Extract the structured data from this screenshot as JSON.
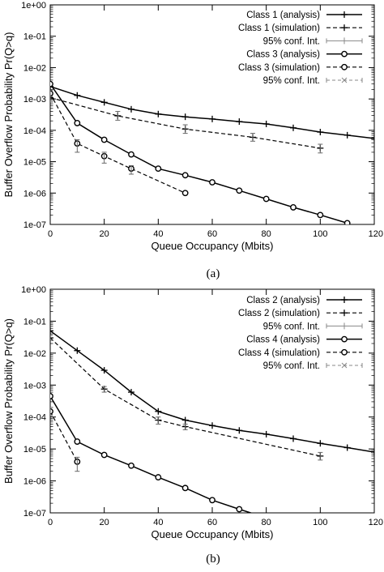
{
  "chart_data": [
    {
      "type": "line",
      "caption": "(a)",
      "xlabel": "Queue Occupancy (Mbits)",
      "ylabel": "Buffer Overflow Probability Pr(Q>q)",
      "xlim": [
        0,
        120
      ],
      "ylim": [
        1e-07,
        1
      ],
      "yscale": "log",
      "x_ticks": [
        0,
        20,
        40,
        60,
        80,
        100,
        120
      ],
      "y_ticks": [
        1,
        0.1,
        0.01,
        0.001,
        0.0001,
        1e-05,
        1e-06,
        1e-07
      ],
      "y_tick_labels": [
        "1e+00",
        "1e-01",
        "1e-02",
        "1e-03",
        "1e-04",
        "1e-05",
        "1e-06",
        "1e-07"
      ],
      "legend_position": "top-right",
      "series": [
        {
          "name": "Class 1 (analysis)",
          "dash": "solid",
          "marker": "plus",
          "x": [
            0,
            10,
            20,
            30,
            40,
            50,
            60,
            70,
            80,
            90,
            100,
            110,
            120
          ],
          "y": [
            0.0025,
            0.0013,
            0.00078,
            0.00047,
            0.00033,
            0.00027,
            0.00023,
            0.00019,
            0.00016,
            0.00012,
            8.8e-05,
            7e-05,
            5.5e-05
          ]
        },
        {
          "name": "Class 1 (simulation)",
          "dash": "dashed",
          "marker": "plus",
          "x": [
            0,
            25,
            50,
            75,
            100
          ],
          "y": [
            0.0011,
            0.00029,
            0.00011,
            6e-05,
            2.7e-05
          ]
        },
        {
          "name": "95% conf. Int.",
          "dash": "errorbar",
          "x": [
            0,
            25,
            50,
            75,
            100
          ],
          "low": [
            0.0008,
            0.00021,
            8e-05,
            4.5e-05,
            1.9e-05
          ],
          "high": [
            0.0015,
            0.0004,
            0.00015,
            8e-05,
            3.6e-05
          ]
        },
        {
          "name": "Class 3 (analysis)",
          "dash": "solid",
          "marker": "circle",
          "x": [
            0,
            10,
            20,
            30,
            40,
            50,
            60,
            70,
            80,
            90,
            100,
            110
          ],
          "y": [
            0.003,
            0.00017,
            5e-05,
            1.7e-05,
            6e-06,
            3.7e-06,
            2.2e-06,
            1.2e-06,
            6.5e-07,
            3.5e-07,
            2e-07,
            1.1e-07
          ]
        },
        {
          "name": "Class 3 (simulation)",
          "dash": "dashed",
          "marker": "circle",
          "x": [
            0,
            10,
            20,
            30,
            50
          ],
          "y": [
            0.0015,
            3.8e-05,
            1.5e-05,
            6e-06,
            1e-06
          ]
        },
        {
          "name": "95% conf. Int.",
          "dash": "errorbar-x",
          "x": [
            0,
            10,
            20,
            30
          ],
          "low": [
            0.0012,
            2e-05,
            9e-06,
            4e-06
          ],
          "high": [
            0.0019,
            5e-05,
            2e-05,
            7.5e-06
          ]
        }
      ]
    },
    {
      "type": "line",
      "caption": "(b)",
      "xlabel": "Queue Occupancy (Mbits)",
      "ylabel": "Buffer Overflow Probability Pr(Q>q)",
      "xlim": [
        0,
        120
      ],
      "ylim": [
        1e-07,
        1
      ],
      "yscale": "log",
      "x_ticks": [
        0,
        20,
        40,
        60,
        80,
        100,
        120
      ],
      "y_ticks": [
        1,
        0.1,
        0.01,
        0.001,
        0.0001,
        1e-05,
        1e-06,
        1e-07
      ],
      "y_tick_labels": [
        "1e+00",
        "1e-01",
        "1e-02",
        "1e-03",
        "1e-04",
        "1e-05",
        "1e-06",
        "1e-07"
      ],
      "legend_position": "top-right",
      "series": [
        {
          "name": "Class 2 (analysis)",
          "dash": "solid",
          "marker": "plus",
          "x": [
            0,
            10,
            20,
            30,
            40,
            50,
            60,
            70,
            80,
            90,
            100,
            110,
            120
          ],
          "y": [
            0.05,
            0.012,
            0.0029,
            0.0006,
            0.00015,
            8e-05,
            5.4e-05,
            3.8e-05,
            2.9e-05,
            2.1e-05,
            1.5e-05,
            1.1e-05,
            8e-06
          ]
        },
        {
          "name": "Class 2 (simulation)",
          "dash": "dashed",
          "marker": "plus",
          "x": [
            0,
            20,
            40,
            50,
            100
          ],
          "y": [
            0.03,
            0.00075,
            8e-05,
            5e-05,
            6e-06
          ]
        },
        {
          "name": "95% conf. Int.",
          "dash": "errorbar",
          "x": [
            0,
            20,
            40,
            50,
            100
          ],
          "low": [
            0.025,
            0.0006,
            6e-05,
            4e-05,
            4.5e-06
          ],
          "high": [
            0.036,
            0.0009,
            0.0001,
            6e-05,
            7.8e-06
          ]
        },
        {
          "name": "Class 4 (analysis)",
          "dash": "solid",
          "marker": "circle",
          "x": [
            0,
            10,
            20,
            30,
            40,
            50,
            60,
            70,
            80
          ],
          "y": [
            0.00045,
            1.7e-05,
            6.5e-06,
            3e-06,
            1.3e-06,
            6e-07,
            2.5e-07,
            1.3e-07,
            7e-08
          ]
        },
        {
          "name": "Class 4 (simulation)",
          "dash": "dashed",
          "marker": "circle",
          "x": [
            0,
            10
          ],
          "y": [
            0.00015,
            4e-06
          ]
        },
        {
          "name": "95% conf. Int.",
          "dash": "errorbar-x",
          "x": [
            0,
            10
          ],
          "low": [
            0.00011,
            2e-06
          ],
          "high": [
            0.0002,
            5.5e-06
          ]
        }
      ]
    }
  ]
}
